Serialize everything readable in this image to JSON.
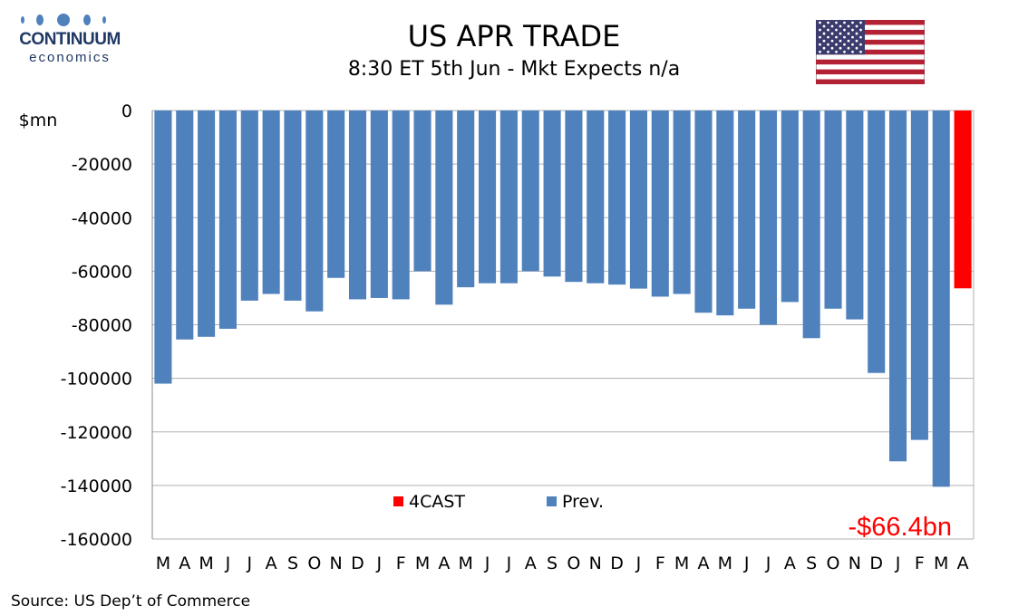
{
  "logo": {
    "brand": "CONTINUUM",
    "sub": "economics"
  },
  "source": "Source: US Dep’t of Commerce",
  "colors": {
    "prev": "#4f81bd",
    "forecast": "#ff0000",
    "gridline": "#b0b0b0"
  },
  "flag_icon": "us-flag-icon",
  "chart_data": {
    "type": "bar",
    "title": "US APR TRADE",
    "subtitle": "8:30 ET 5th Jun - Mkt Expects n/a",
    "ylabel": "$mn",
    "ylim": [
      -160000,
      0
    ],
    "yticks": [
      0,
      -20000,
      -40000,
      -60000,
      -80000,
      -100000,
      -120000,
      -140000,
      -160000
    ],
    "grid": true,
    "legend_placement": "bottom-center",
    "categories": [
      "M",
      "A",
      "M",
      "J",
      "J",
      "A",
      "S",
      "O",
      "N",
      "D",
      "J",
      "F",
      "M",
      "A",
      "M",
      "J",
      "J",
      "A",
      "S",
      "O",
      "N",
      "D",
      "J",
      "F",
      "M",
      "A",
      "M",
      "J",
      "J",
      "A",
      "S",
      "O",
      "N",
      "D",
      "J",
      "F",
      "M",
      "A"
    ],
    "series": [
      {
        "name": "Prev.",
        "color": "#4f81bd",
        "values": [
          -102000,
          -85500,
          -84500,
          -81500,
          -71000,
          -68500,
          -71000,
          -75000,
          -62500,
          -70500,
          -70000,
          -70500,
          -60000,
          -72500,
          -66000,
          -64500,
          -64500,
          -60000,
          -62000,
          -64000,
          -64500,
          -65000,
          -66500,
          -69500,
          -68500,
          -75500,
          -76500,
          -74000,
          -80000,
          -71500,
          -85000,
          -74000,
          -78000,
          -98000,
          -131000,
          -123000,
          -140500,
          null
        ]
      },
      {
        "name": "4CAST",
        "color": "#ff0000",
        "values": [
          null,
          null,
          null,
          null,
          null,
          null,
          null,
          null,
          null,
          null,
          null,
          null,
          null,
          null,
          null,
          null,
          null,
          null,
          null,
          null,
          null,
          null,
          null,
          null,
          null,
          null,
          null,
          null,
          null,
          null,
          null,
          null,
          null,
          null,
          null,
          null,
          null,
          -66400
        ]
      }
    ],
    "annotation": "-$66.4bn"
  }
}
